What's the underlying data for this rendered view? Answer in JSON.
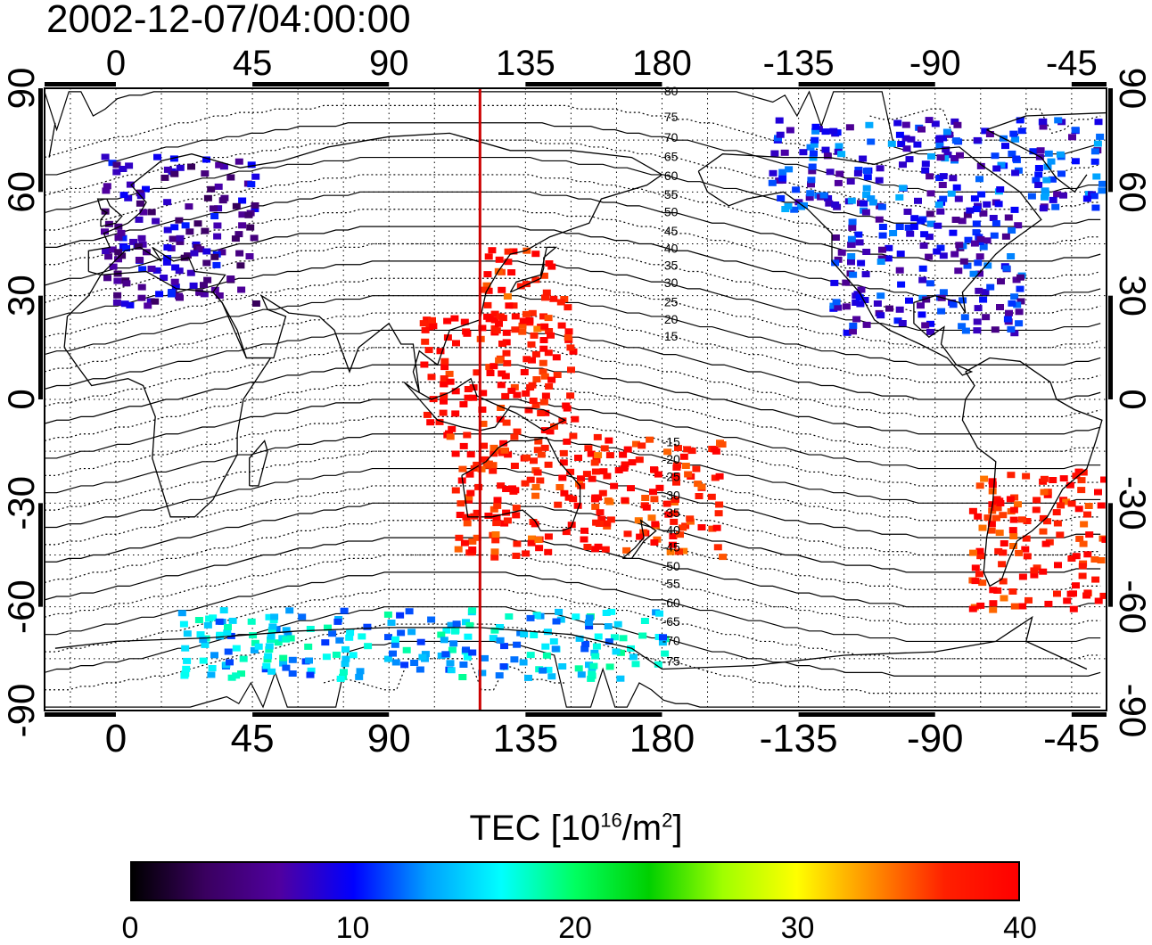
{
  "timestamp": "2002-12-07/04:00:00",
  "map": {
    "projection": "equirectangular",
    "lon_ticks": [
      "0",
      "45",
      "90",
      "135",
      "180",
      "-135",
      "-90",
      "-45"
    ],
    "lon_values": [
      0,
      45,
      90,
      135,
      180,
      225,
      270,
      315
    ],
    "lat_ticks": [
      "90",
      "60",
      "30",
      "0",
      "-30",
      "-60",
      "-90"
    ],
    "lat_values": [
      90,
      60,
      30,
      0,
      -30,
      -60,
      -90
    ],
    "central_meridian_longitude": 120,
    "magnetic_lat_labels_north": [
      "80",
      "75",
      "70",
      "65",
      "60",
      "55",
      "50",
      "45",
      "40",
      "35",
      "30",
      "25",
      "20",
      "15"
    ],
    "magnetic_lat_labels_south": [
      "15",
      "20",
      "25",
      "30",
      "35",
      "40",
      "45",
      "50",
      "55",
      "60",
      "65",
      "70",
      "75"
    ],
    "grid": "dotted",
    "colors": {
      "meridian_line": "#cc0000",
      "outline": "#000000"
    }
  },
  "colorbar": {
    "title_prefix": "TEC  [10",
    "title_exp1": "16",
    "title_mid": "/m",
    "title_exp2": "2",
    "title_suffix": "]",
    "ticks": [
      "0",
      "10",
      "20",
      "30",
      "40"
    ],
    "tick_values": [
      0,
      10,
      20,
      30,
      40
    ],
    "range": [
      0,
      40
    ],
    "gradient_colors": [
      "#000000",
      "#3a0060",
      "#5000a0",
      "#0000ff",
      "#00a0ff",
      "#00ffff",
      "#00ff60",
      "#00d000",
      "#a0ff00",
      "#ffff00",
      "#ff9000",
      "#ff2000",
      "#ff0000"
    ]
  },
  "tec_regions": [
    {
      "region": "Europe",
      "lon": [
        355,
        45
      ],
      "lat": [
        28,
        72
      ],
      "tec": 7
    },
    {
      "region": "North America",
      "lon": [
        235,
        298
      ],
      "lat": [
        20,
        55
      ],
      "tec": 9
    },
    {
      "region": "Canada/Arctic",
      "lon": [
        215,
        330
      ],
      "lat": [
        55,
        82
      ],
      "tec": 10
    },
    {
      "region": "Japan/East Asia",
      "lon": [
        120,
        148
      ],
      "lat": [
        20,
        45
      ],
      "tec": 38
    },
    {
      "region": "Western Pacific",
      "lon": [
        100,
        150
      ],
      "lat": [
        -10,
        25
      ],
      "tec": 39
    },
    {
      "region": "Australia/South Pacific",
      "lon": [
        110,
        200
      ],
      "lat": [
        -45,
        -10
      ],
      "tec": 38
    },
    {
      "region": "South America",
      "lon": [
        280,
        325
      ],
      "lat": [
        -60,
        -20
      ],
      "tec": 38
    },
    {
      "region": "Antarctica",
      "lon": [
        20,
        180
      ],
      "lat": [
        -80,
        -60
      ],
      "tec": 15
    }
  ]
}
